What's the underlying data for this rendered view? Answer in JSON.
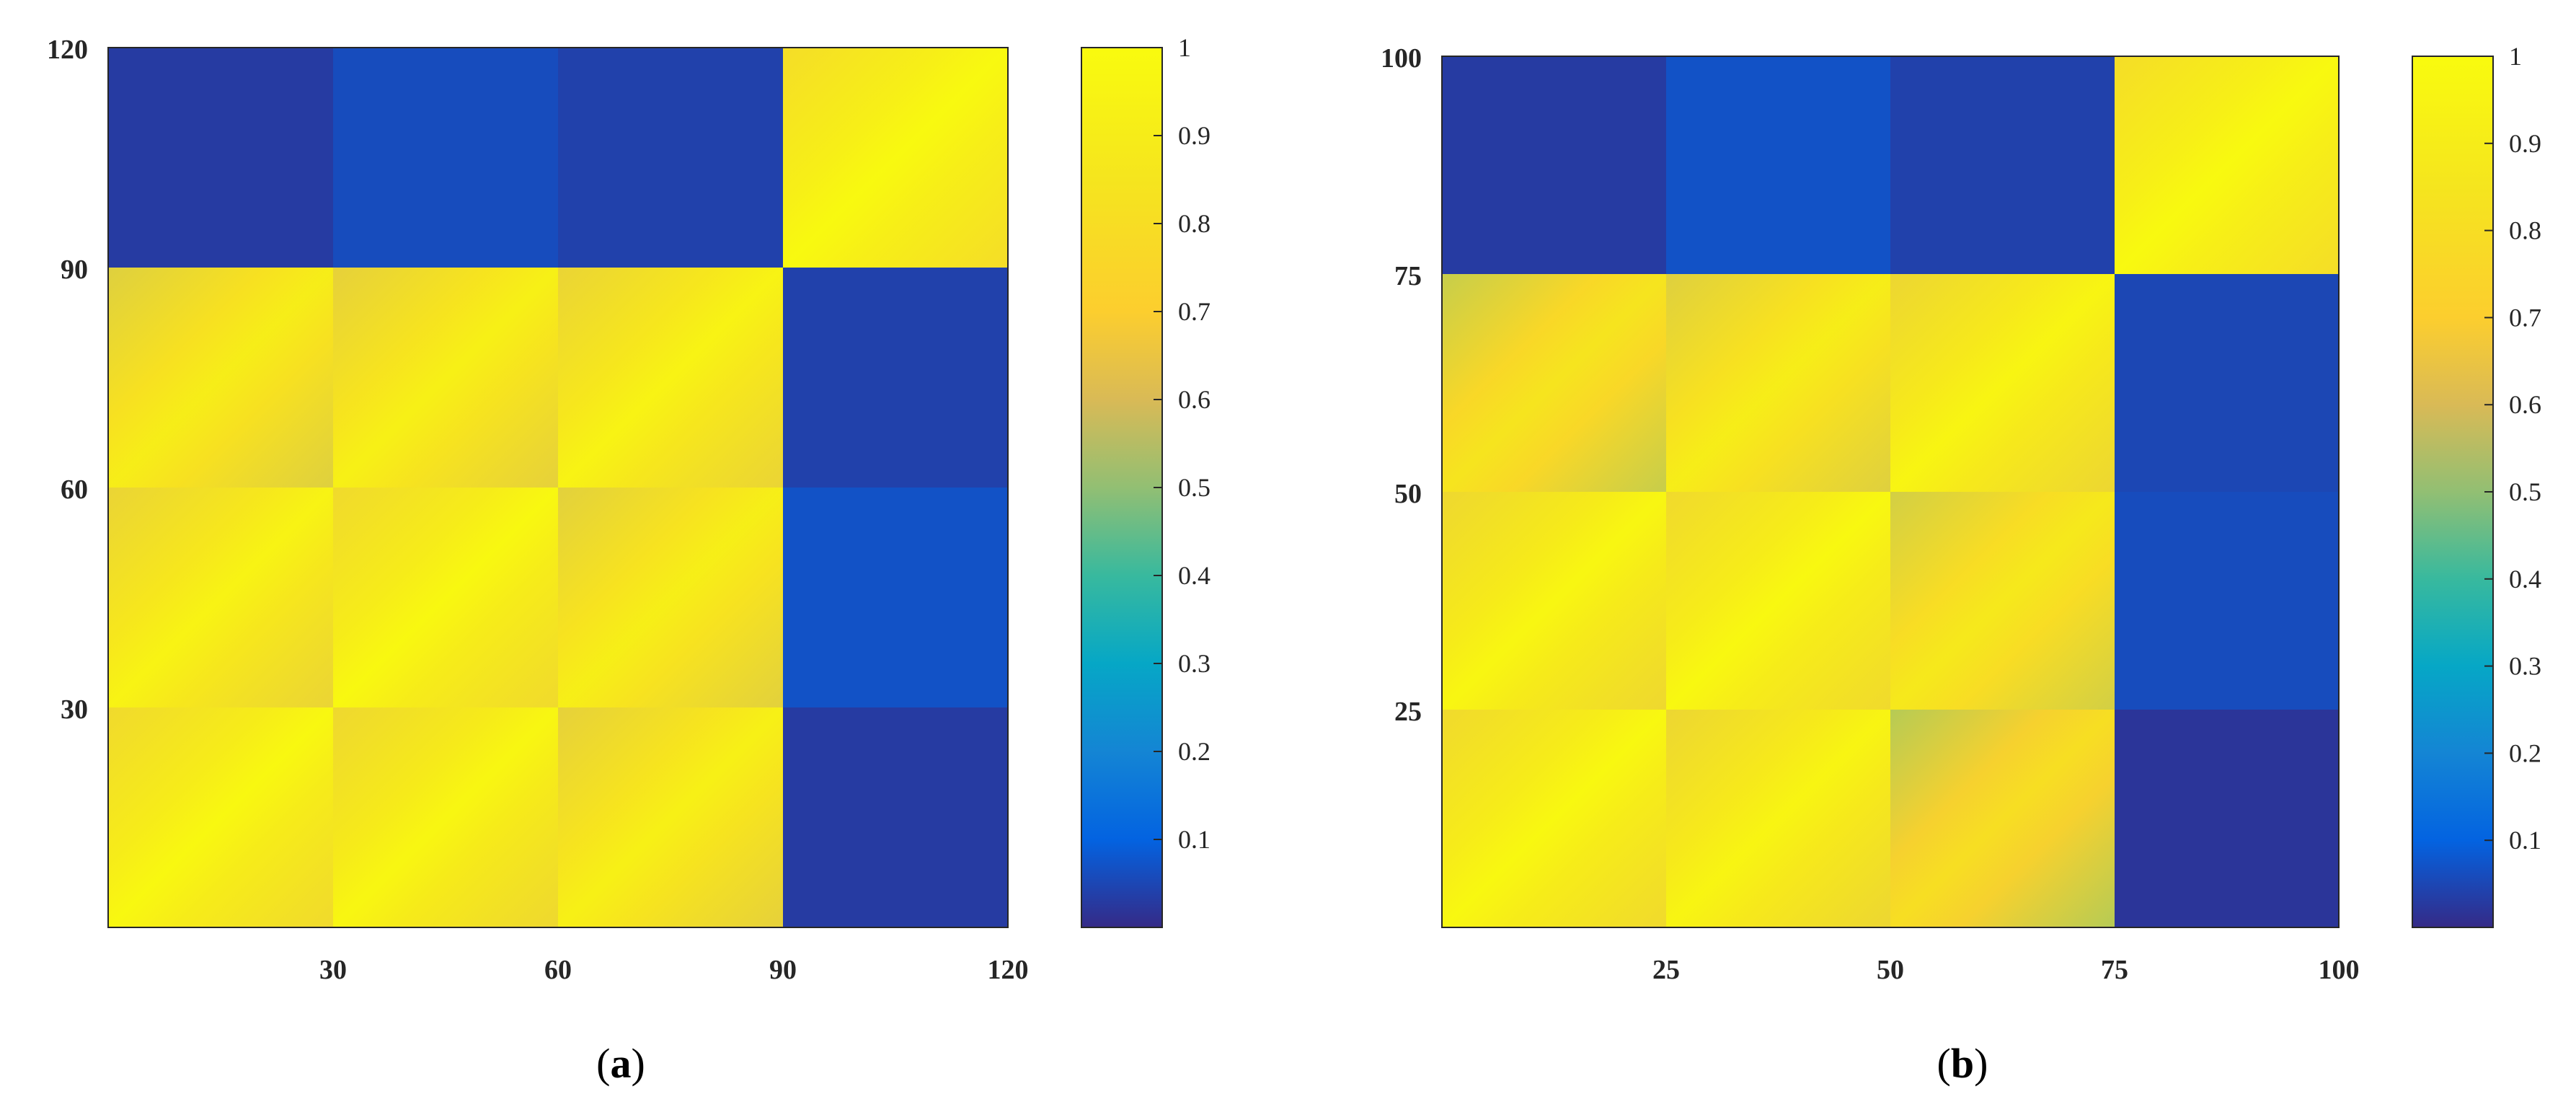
{
  "chart_data": [
    {
      "type": "heatmap",
      "caption_open": "(",
      "caption_letter": "a",
      "caption_close": ")",
      "matrix_size": 120,
      "block_size": 30,
      "xlim": [
        0,
        120
      ],
      "ylim": [
        0,
        120
      ],
      "xticks": [
        "30",
        "60",
        "90",
        "120"
      ],
      "yticks": [
        "30",
        "60",
        "90",
        "120"
      ],
      "colorbar": {
        "range": [
          0,
          1
        ],
        "ticks": [
          "0.1",
          "0.2",
          "0.3",
          "0.4",
          "0.5",
          "0.6",
          "0.7",
          "0.8",
          "0.9",
          "1"
        ]
      },
      "blocks_row_major_top_to_bottom": [
        [
          0.03,
          0.06,
          0.04,
          0.97
        ],
        [
          0.88,
          0.9,
          0.92,
          0.04
        ],
        [
          0.92,
          0.95,
          0.89,
          0.07
        ],
        [
          0.95,
          0.94,
          0.9,
          0.03
        ]
      ]
    },
    {
      "type": "heatmap",
      "caption_open": "(",
      "caption_letter": "b",
      "caption_close": ")",
      "matrix_size": 100,
      "block_size": 25,
      "xlim": [
        0,
        100
      ],
      "ylim": [
        0,
        100
      ],
      "xticks": [
        "25",
        "50",
        "75",
        "100"
      ],
      "yticks": [
        "25",
        "50",
        "75",
        "100"
      ],
      "colorbar": {
        "range": [
          0,
          1
        ],
        "ticks": [
          "0.1",
          "0.2",
          "0.3",
          "0.4",
          "0.5",
          "0.6",
          "0.7",
          "0.8",
          "0.9",
          "1"
        ]
      },
      "blocks_row_major_top_to_bottom": [
        [
          0.03,
          0.07,
          0.04,
          0.97
        ],
        [
          0.82,
          0.88,
          0.93,
          0.05
        ],
        [
          0.94,
          0.95,
          0.85,
          0.06
        ],
        [
          0.95,
          0.93,
          0.78,
          0.02
        ]
      ]
    }
  ],
  "colormap": "parula"
}
